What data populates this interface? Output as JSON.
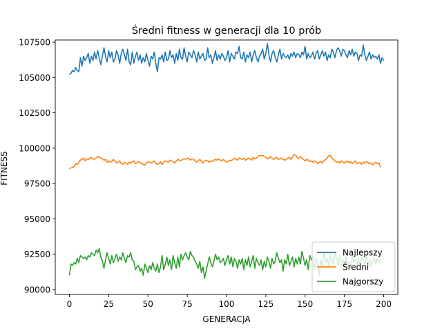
{
  "chart_data": {
    "type": "line",
    "title": "Średni fitness w generacji dla 10 prób",
    "xlabel": "GENERACJA",
    "ylabel": "FITNESS",
    "xlim": [
      -9,
      209
    ],
    "ylim": [
      89650,
      107650
    ],
    "xticks": [
      0,
      25,
      50,
      75,
      100,
      125,
      150,
      175,
      200
    ],
    "yticks": [
      90000,
      92500,
      95000,
      97500,
      100000,
      102500,
      105000,
      107500
    ],
    "grid": false,
    "legend_position": "lower-right",
    "x_start": 0,
    "x_step": 1,
    "series": [
      {
        "name": "Najlepszy",
        "color": "#1f77b4",
        "values": [
          105200,
          105300,
          105500,
          105400,
          105700,
          105500,
          105400,
          106400,
          105800,
          106500,
          106200,
          106400,
          106700,
          106000,
          106500,
          106200,
          106800,
          106300,
          106900,
          106400,
          105900,
          106500,
          107100,
          106500,
          106100,
          106900,
          106400,
          106800,
          106100,
          106300,
          106900,
          106600,
          106000,
          106700,
          107000,
          106600,
          106200,
          107000,
          106100,
          105900,
          106800,
          106000,
          106500,
          106800,
          106200,
          106600,
          106000,
          106400,
          106100,
          106700,
          106200,
          105800,
          106500,
          106300,
          106800,
          106000,
          105400,
          106400,
          106300,
          106600,
          106100,
          106800,
          106200,
          106300,
          106900,
          106400,
          106600,
          106000,
          106700,
          106200,
          107000,
          106400,
          106300,
          107100,
          106500,
          106100,
          106800,
          106600,
          106400,
          106900,
          106600,
          106100,
          106800,
          106300,
          106500,
          106700,
          106200,
          106300,
          107100,
          106400,
          106600,
          106000,
          106400,
          106900,
          106200,
          106600,
          106300,
          106700,
          106500,
          106200,
          106400,
          106900,
          106100,
          106700,
          106500,
          106300,
          106800,
          106700,
          107200,
          106400,
          106300,
          106800,
          106100,
          106600,
          106400,
          106800,
          106100,
          106600,
          106900,
          106400,
          106100,
          106500,
          106700,
          107000,
          106300,
          106700,
          107400,
          106600,
          106100,
          106700,
          106900,
          106400,
          106100,
          106600,
          107000,
          106300,
          106700,
          106500,
          106400,
          106600,
          106300,
          106700,
          106500,
          106800,
          106400,
          106700,
          106600,
          106400,
          106800,
          106600,
          107200,
          106300,
          106700,
          106400,
          106500,
          106800,
          106300,
          106700,
          106900,
          106300,
          106600,
          106900,
          106500,
          106800,
          106200,
          106600,
          106400,
          107000,
          106800,
          106400,
          106900,
          107100,
          106900,
          106500,
          107000,
          106900,
          106600,
          106400,
          106900,
          106600,
          107000,
          106500,
          106800,
          106700,
          106200,
          106600,
          106500,
          107300,
          106600,
          106200,
          106500,
          106800,
          106300,
          106600,
          106400,
          106500,
          106300,
          106600,
          106000,
          106400,
          106200
        ]
      },
      {
        "name": "Średni",
        "color": "#ff7f0e",
        "values": [
          98550,
          98600,
          98650,
          98700,
          98900,
          98850,
          99000,
          99150,
          99200,
          99300,
          99100,
          99250,
          99200,
          99300,
          99350,
          99250,
          99200,
          99300,
          99400,
          99350,
          99300,
          99250,
          99150,
          99200,
          99000,
          99100,
          99000,
          99050,
          99200,
          99100,
          98950,
          99000,
          99100,
          98900,
          98850,
          99000,
          98950,
          98850,
          99000,
          98950,
          99050,
          99100,
          98900,
          98950,
          99050,
          99000,
          98900,
          98850,
          98800,
          98950,
          99050,
          99000,
          98950,
          99000,
          99100,
          98900,
          98850,
          98900,
          99050,
          98850,
          99000,
          99100,
          99050,
          99000,
          99150,
          99100,
          99050,
          98950,
          99100,
          99200,
          99150,
          99100,
          99200,
          99250,
          99200,
          99300,
          99250,
          99150,
          99250,
          99200,
          99100,
          99000,
          99100,
          99200,
          99100,
          98950,
          99050,
          99150,
          99100,
          99000,
          99100,
          99050,
          99150,
          99200,
          99150,
          99250,
          99150,
          99100,
          99200,
          99100,
          99000,
          99050,
          99150,
          99100,
          99200,
          99300,
          99200,
          99150,
          99300,
          99250,
          99200,
          99300,
          99150,
          99200,
          99300,
          99250,
          99150,
          99350,
          99250,
          99300,
          99400,
          99500,
          99450,
          99500,
          99400,
          99350,
          99250,
          99300,
          99400,
          99300,
          99200,
          99300,
          99350,
          99200,
          99250,
          99300,
          99200,
          99150,
          99200,
          99300,
          99350,
          99200,
          99400,
          99550,
          99500,
          99350,
          99250,
          99400,
          99300,
          99200,
          99100,
          99200,
          99150,
          99050,
          99100,
          99000,
          99100,
          99050,
          98900,
          99000,
          99050,
          98950,
          99100,
          99200,
          99300,
          99450,
          99500,
          99300,
          99200,
          99100,
          99000,
          99050,
          98950,
          99100,
          99000,
          98950,
          99050,
          99100,
          98950,
          99050,
          98900,
          99000,
          99100,
          98900,
          98950,
          99000,
          98850,
          99000,
          98950,
          99050,
          99000,
          98900,
          98950,
          98800,
          98950,
          99000,
          98900,
          98950,
          98650
        ]
      },
      {
        "name": "Najgorszy",
        "color": "#2ca02c",
        "values": [
          91000,
          91800,
          91700,
          91900,
          91800,
          92200,
          91900,
          92400,
          92300,
          92200,
          92300,
          92100,
          92400,
          92300,
          92600,
          92500,
          92400,
          92800,
          92600,
          92900,
          92300,
          92000,
          91500,
          92100,
          92600,
          92200,
          91800,
          92400,
          91900,
          92200,
          92500,
          92000,
          92300,
          92100,
          92600,
          92200,
          91900,
          92400,
          92300,
          92600,
          92100,
          92000,
          91400,
          91600,
          91700,
          91300,
          91500,
          91000,
          91800,
          91500,
          91200,
          91700,
          91400,
          91900,
          91500,
          91300,
          91800,
          91200,
          91600,
          92400,
          91400,
          91800,
          92300,
          91700,
          92100,
          91400,
          92400,
          91900,
          91500,
          92300,
          91600,
          92500,
          92100,
          92400,
          92600,
          92300,
          92100,
          92700,
          92400,
          92300,
          92000,
          91800,
          91500,
          92000,
          91200,
          91600,
          90800,
          91300,
          91800,
          92300,
          91900,
          91600,
          92000,
          92500,
          92100,
          92300,
          91900,
          92000,
          92200,
          91700,
          92100,
          92400,
          91800,
          92300,
          91600,
          92200,
          92000,
          91500,
          92100,
          91800,
          92200,
          91400,
          92100,
          91700,
          92300,
          91600,
          92000,
          92400,
          91500,
          92200,
          91900,
          91700,
          92100,
          91400,
          92000,
          91600,
          92300,
          92000,
          91500,
          92200,
          91800,
          92000,
          92600,
          92200,
          91900,
          92100,
          91300,
          92100,
          91800,
          92500,
          91700,
          92000,
          92300,
          91600,
          92200,
          91800,
          92300,
          91800,
          92700,
          92200,
          91700,
          92100,
          91400,
          92400,
          92100,
          92300,
          91400,
          92200,
          91900,
          91000,
          92100,
          91600,
          92600,
          91900,
          92200,
          91700,
          92500,
          92000,
          91800,
          92600,
          92200,
          91700,
          92400,
          91600,
          92100,
          91700,
          92300,
          91800,
          92000,
          91500,
          92400,
          91900,
          92100,
          91700,
          92200,
          91600,
          92300,
          92000,
          91800,
          92400,
          91700,
          92100,
          91600,
          92000,
          92300,
          91800,
          92200,
          91900,
          92100
        ]
      }
    ]
  }
}
